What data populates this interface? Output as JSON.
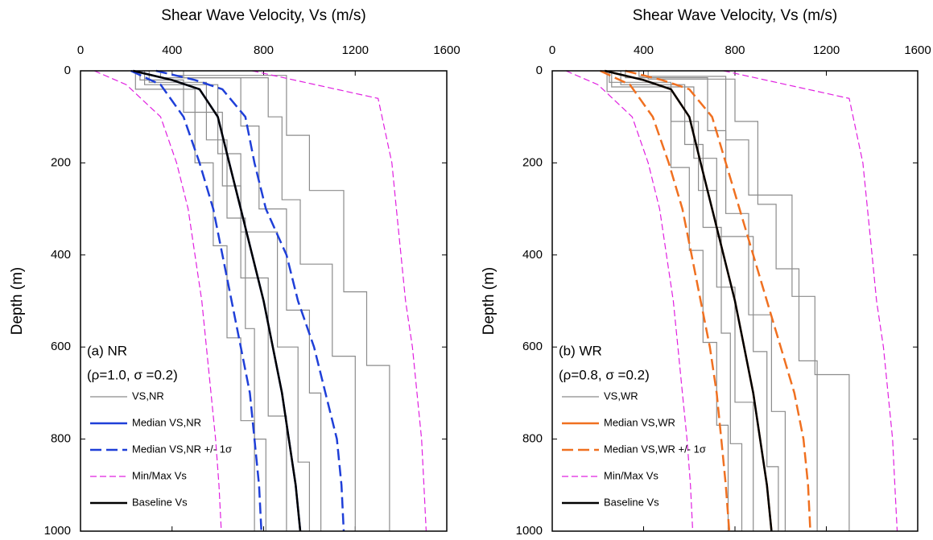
{
  "chart_data": [
    {
      "type": "line",
      "title": "Shear Wave Velocity, Vs (m/s)",
      "y_label": "Depth (m)",
      "xlim": [
        0,
        1600
      ],
      "xticks": [
        0,
        400,
        800,
        1200,
        1600
      ],
      "ylim": [
        0,
        1000
      ],
      "yticks": [
        0,
        200,
        400,
        600,
        800,
        1000
      ],
      "y_reversed": true,
      "x_axis_position": "top",
      "annotations": [
        "(a) NR",
        "(ρ=1.0, σ =0.2)"
      ],
      "series": [
        {
          "name": "VS,NR",
          "color": "#8c8c8c",
          "dash": "solid",
          "width": 1.2,
          "lines": [
            {
              "x": [
                260,
                260,
                450,
                450,
                620,
                620,
                700,
                700,
                820,
                820,
                900,
                900
              ],
              "y": [
                0,
                20,
                20,
                90,
                90,
                250,
                250,
                450,
                450,
                750,
                750,
                1000
              ]
            },
            {
              "x": [
                350,
                350,
                700,
                700,
                780,
                780,
                900,
                900,
                1000,
                1000,
                1050,
                1050
              ],
              "y": [
                0,
                15,
                15,
                120,
                120,
                300,
                300,
                520,
                520,
                700,
                700,
                1000
              ]
            },
            {
              "x": [
                300,
                300,
                550,
                550,
                640,
                640,
                720,
                720,
                760,
                760,
                810,
                810
              ],
              "y": [
                0,
                25,
                25,
                150,
                150,
                320,
                320,
                560,
                560,
                800,
                800,
                1000
              ]
            },
            {
              "x": [
                400,
                400,
                900,
                900,
                1000,
                1000,
                1150,
                1150,
                1250,
                1250,
                1350,
                1350
              ],
              "y": [
                0,
                10,
                10,
                140,
                140,
                260,
                260,
                480,
                480,
                640,
                640,
                1000
              ]
            },
            {
              "x": [
                280,
                280,
                600,
                600,
                700,
                700,
                860,
                860,
                950,
                950,
                1000,
                1000
              ],
              "y": [
                0,
                30,
                30,
                180,
                180,
                350,
                350,
                600,
                600,
                850,
                850,
                1000
              ]
            },
            {
              "x": [
                450,
                450,
                820,
                820,
                880,
                880,
                960,
                960,
                1100,
                1100,
                1200,
                1200
              ],
              "y": [
                0,
                15,
                15,
                100,
                100,
                280,
                280,
                420,
                420,
                620,
                620,
                1000
              ]
            },
            {
              "x": [
                240,
                240,
                500,
                500,
                580,
                580,
                640,
                640,
                700,
                700,
                760,
                760
              ],
              "y": [
                0,
                40,
                40,
                200,
                200,
                380,
                380,
                580,
                580,
                760,
                760,
                1000
              ]
            }
          ]
        },
        {
          "name": "Median VS,NR",
          "color": "#1f3fd8",
          "dash": "solid",
          "width": 2.5,
          "lines": [
            {
              "x": [
                230,
                400,
                520,
                600,
                650,
                700,
                750,
                800,
                840,
                880,
                910,
                940,
                960
              ],
              "y": [
                0,
                20,
                40,
                100,
                200,
                300,
                400,
                500,
                600,
                700,
                800,
                900,
                1000
              ]
            }
          ]
        },
        {
          "name": "Median VS,NR +/- 1σ",
          "color": "#1f3fd8",
          "dash": "dashed",
          "width": 2.5,
          "lines": [
            {
              "x": [
                330,
                500,
                620,
                720,
                760,
                810,
                900,
                950,
                1020,
                1070,
                1120,
                1140,
                1150
              ],
              "y": [
                0,
                20,
                40,
                100,
                200,
                300,
                400,
                500,
                600,
                700,
                800,
                900,
                1000
              ]
            },
            {
              "x": [
                220,
                350,
                450,
                520,
                580,
                620,
                660,
                700,
                740,
                760,
                780,
                790
              ],
              "y": [
                0,
                30,
                100,
                200,
                300,
                400,
                500,
                600,
                700,
                800,
                900,
                1000
              ]
            }
          ]
        },
        {
          "name": "Min/Max Vs",
          "color": "#e020e0",
          "dash": "dashed",
          "width": 1.2,
          "lines": [
            {
              "x": [
                60,
                200,
                350,
                420,
                470,
                500,
                530,
                550,
                570,
                590,
                605,
                615
              ],
              "y": [
                0,
                30,
                100,
                200,
                300,
                400,
                500,
                600,
                700,
                800,
                900,
                1000
              ]
            },
            {
              "x": [
                750,
                1300,
                1360,
                1380,
                1400,
                1420,
                1450,
                1470,
                1490,
                1500,
                1510
              ],
              "y": [
                0,
                60,
                200,
                300,
                400,
                500,
                600,
                700,
                800,
                900,
                1000
              ]
            }
          ]
        },
        {
          "name": "Baseline Vs",
          "color": "#000000",
          "dash": "solid",
          "width": 2.5,
          "lines": [
            {
              "x": [
                230,
                400,
                520,
                600,
                650,
                700,
                750,
                800,
                840,
                880,
                910,
                940,
                960
              ],
              "y": [
                0,
                20,
                40,
                100,
                200,
                300,
                400,
                500,
                600,
                700,
                800,
                900,
                1000
              ]
            }
          ]
        }
      ]
    },
    {
      "type": "line",
      "title": "Shear Wave Velocity, Vs (m/s)",
      "y_label": "Depth (m)",
      "xlim": [
        0,
        1600
      ],
      "xticks": [
        0,
        400,
        800,
        1200,
        1600
      ],
      "ylim": [
        0,
        1000
      ],
      "yticks": [
        0,
        200,
        400,
        600,
        800,
        1000
      ],
      "y_reversed": true,
      "x_axis_position": "top",
      "annotations": [
        "(b) WR",
        "(ρ=0.8, σ =0.2)"
      ],
      "series": [
        {
          "name": "VS,WR",
          "color": "#8c8c8c",
          "dash": "solid",
          "width": 1.2,
          "lines": [
            {
              "x": [
                250,
                250,
                520,
                520,
                640,
                640,
                720,
                720,
                800,
                800,
                880,
                880
              ],
              "y": [
                0,
                25,
                25,
                110,
                110,
                260,
                260,
                470,
                470,
                720,
                720,
                1000
              ]
            },
            {
              "x": [
                320,
                320,
                680,
                680,
                760,
                760,
                860,
                860,
                960,
                960,
                1020,
                1020
              ],
              "y": [
                0,
                15,
                15,
                130,
                130,
                310,
                310,
                530,
                530,
                740,
                740,
                1000
              ]
            },
            {
              "x": [
                300,
                300,
                580,
                580,
                660,
                660,
                740,
                740,
                780,
                780,
                830,
                830
              ],
              "y": [
                0,
                30,
                30,
                160,
                160,
                340,
                340,
                570,
                570,
                810,
                810,
                1000
              ]
            },
            {
              "x": [
                380,
                380,
                760,
                760,
                860,
                860,
                1050,
                1050,
                1150,
                1150,
                1300,
                1300
              ],
              "y": [
                0,
                12,
                12,
                150,
                150,
                270,
                270,
                490,
                490,
                660,
                660,
                1000
              ]
            },
            {
              "x": [
                260,
                260,
                620,
                620,
                720,
                720,
                880,
                880,
                940,
                940,
                990,
                990
              ],
              "y": [
                0,
                35,
                35,
                190,
                190,
                360,
                360,
                610,
                610,
                860,
                860,
                1000
              ]
            },
            {
              "x": [
                420,
                420,
                800,
                800,
                900,
                900,
                980,
                980,
                1080,
                1080,
                1160,
                1160
              ],
              "y": [
                0,
                18,
                18,
                110,
                110,
                290,
                290,
                430,
                430,
                630,
                630,
                1000
              ]
            },
            {
              "x": [
                240,
                240,
                520,
                520,
                600,
                600,
                660,
                660,
                720,
                720,
                770,
                770
              ],
              "y": [
                0,
                45,
                45,
                210,
                210,
                390,
                390,
                590,
                590,
                770,
                770,
                1000
              ]
            }
          ]
        },
        {
          "name": "Median VS,WR",
          "color": "#f07020",
          "dash": "solid",
          "width": 2.5,
          "lines": [
            {
              "x": [
                230,
                400,
                520,
                600,
                650,
                700,
                750,
                800,
                840,
                880,
                910,
                940,
                960
              ],
              "y": [
                0,
                20,
                40,
                100,
                200,
                300,
                400,
                500,
                600,
                700,
                800,
                900,
                1000
              ]
            }
          ]
        },
        {
          "name": "Median VS,WR +/- 1σ",
          "color": "#f07020",
          "dash": "dashed",
          "width": 2.5,
          "lines": [
            {
              "x": [
                320,
                480,
                600,
                700,
                760,
                820,
                880,
                940,
                1000,
                1060,
                1100,
                1120,
                1130
              ],
              "y": [
                0,
                20,
                40,
                100,
                200,
                300,
                400,
                500,
                600,
                700,
                800,
                900,
                1000
              ]
            },
            {
              "x": [
                210,
                340,
                440,
                510,
                570,
                610,
                650,
                690,
                720,
                740,
                760,
                775
              ],
              "y": [
                0,
                30,
                100,
                200,
                300,
                400,
                500,
                600,
                700,
                800,
                900,
                1000
              ]
            }
          ]
        },
        {
          "name": "Min/Max Vs",
          "color": "#e020e0",
          "dash": "dashed",
          "width": 1.2,
          "lines": [
            {
              "x": [
                60,
                200,
                350,
                420,
                470,
                500,
                530,
                550,
                570,
                590,
                605,
                615
              ],
              "y": [
                0,
                30,
                100,
                200,
                300,
                400,
                500,
                600,
                700,
                800,
                900,
                1000
              ]
            },
            {
              "x": [
                750,
                1300,
                1360,
                1380,
                1400,
                1420,
                1450,
                1470,
                1490,
                1500,
                1510
              ],
              "y": [
                0,
                60,
                200,
                300,
                400,
                500,
                600,
                700,
                800,
                900,
                1000
              ]
            }
          ]
        },
        {
          "name": "Baseline Vs",
          "color": "#000000",
          "dash": "solid",
          "width": 2.5,
          "lines": [
            {
              "x": [
                230,
                400,
                520,
                600,
                650,
                700,
                750,
                800,
                840,
                880,
                910,
                940,
                960
              ],
              "y": [
                0,
                20,
                40,
                100,
                200,
                300,
                400,
                500,
                600,
                700,
                800,
                900,
                1000
              ]
            }
          ]
        }
      ]
    }
  ]
}
